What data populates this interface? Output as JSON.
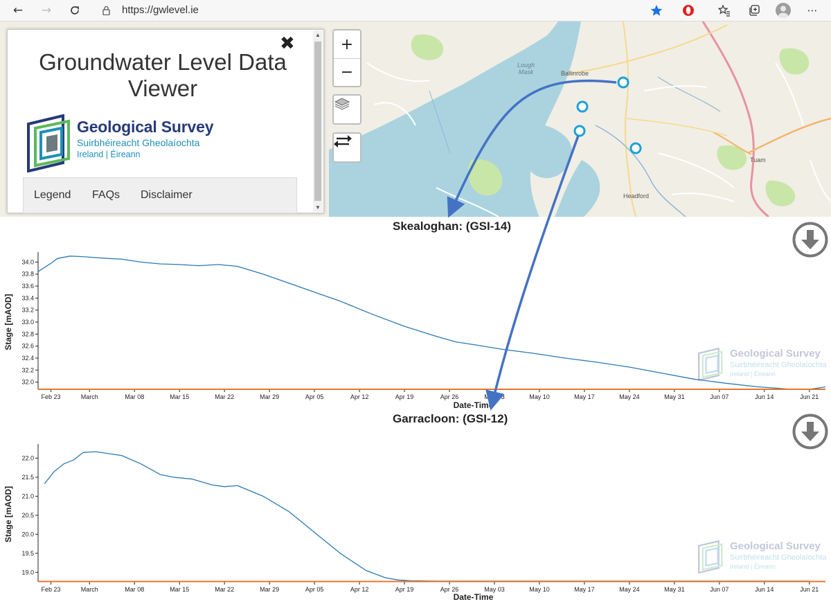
{
  "browser": {
    "url": "https://gwlevel.ie",
    "icons": [
      "back-icon",
      "forward-icon",
      "reload-icon",
      "lock-icon",
      "favorite-star-icon",
      "opera-icon",
      "favorites-list-icon",
      "collections-icon",
      "profile-icon",
      "more-icon"
    ]
  },
  "map": {
    "labels": {
      "lough_mask": "Lough\nMask",
      "ballinrobe": "Ballinrobe",
      "tuam": "Tuam",
      "headford": "Headford"
    },
    "controls": {
      "zoom_in": "+",
      "zoom_out": "−"
    },
    "station_count": 4,
    "accent_color": "#1ba0d8"
  },
  "panel": {
    "title": "Groundwater Level Data Viewer",
    "org_name": "Geological Survey",
    "org_irish": "Suirbhéireacht Gheolaíochta",
    "org_country": "Ireland | Éireann",
    "nav": [
      "Legend",
      "FAQs",
      "Disclaimer"
    ]
  },
  "chart_data": [
    {
      "type": "line",
      "title": "Skealoghan: (GSI-14)",
      "xlabel": "Date-Time",
      "ylabel": "Stage [mAOD]",
      "x_ticks": [
        "Feb 23",
        "March",
        "Mar 08",
        "Mar 15",
        "Mar 22",
        "Mar 29",
        "Apr 05",
        "Apr 12",
        "Apr 19",
        "Apr 26",
        "May 03",
        "May 10",
        "May 17",
        "May 24",
        "May 31",
        "Jun 07",
        "Jun 14",
        "Jun 21"
      ],
      "y_ticks": [
        32.0,
        32.2,
        32.4,
        32.6,
        32.8,
        33.0,
        33.2,
        33.4,
        33.6,
        33.8,
        34.0
      ],
      "ylim": [
        31.88,
        34.12
      ],
      "x_domain_days": [
        -2,
        120.5
      ],
      "series": [
        {
          "color": "#2b78b4",
          "x_days": [
            -2,
            0,
            1,
            3,
            5,
            9,
            11,
            14,
            17,
            20,
            23,
            26,
            29,
            33,
            37,
            41,
            45,
            50,
            55,
            60,
            63,
            66,
            70,
            75,
            80,
            85,
            90,
            95,
            100,
            105,
            110,
            114,
            115,
            116,
            118,
            120,
            120.5
          ],
          "y": [
            33.84,
            33.98,
            34.06,
            34.1,
            34.09,
            34.06,
            34.05,
            34.0,
            33.97,
            33.96,
            33.94,
            33.96,
            33.93,
            33.8,
            33.65,
            33.5,
            33.35,
            33.13,
            32.93,
            32.76,
            32.67,
            32.62,
            32.55,
            32.48,
            32.4,
            32.33,
            32.25,
            32.15,
            32.05,
            31.98,
            31.92,
            31.89,
            31.88,
            31.88,
            31.88,
            31.91,
            31.92
          ]
        },
        {
          "color": "#e8762b",
          "x_days": [
            -2,
            120.5
          ],
          "y": [
            31.88,
            31.88
          ]
        }
      ],
      "watermark": "Geological Survey"
    },
    {
      "type": "line",
      "title": "Garracloon: (GSI-12)",
      "xlabel": "Date-Time",
      "ylabel": "Stage [mAOD]",
      "x_ticks": [
        "Feb 23",
        "March",
        "Mar 08",
        "Mar 15",
        "Mar 22",
        "Mar 29",
        "Apr 05",
        "Apr 12",
        "Apr 19",
        "Apr 26",
        "May 03",
        "May 10",
        "May 17",
        "May 24",
        "May 31",
        "Jun 07",
        "Jun 14",
        "Jun 21"
      ],
      "y_ticks": [
        19.0,
        19.5,
        20.0,
        20.5,
        21.0,
        21.5,
        22.0
      ],
      "ylim": [
        18.75,
        22.3
      ],
      "x_domain_days": [
        -2,
        120.5
      ],
      "series": [
        {
          "color": "#2b78b4",
          "x_days": [
            -1,
            0.5,
            2,
            3.5,
            5,
            7,
            9,
            11,
            14,
            17,
            19,
            22,
            25,
            27,
            29,
            33,
            37,
            41,
            45,
            49,
            52,
            54,
            56,
            60,
            70,
            80,
            90,
            100,
            110,
            118
          ],
          "y": [
            21.33,
            21.65,
            21.85,
            21.95,
            22.15,
            22.17,
            22.12,
            22.07,
            21.85,
            21.57,
            21.5,
            21.45,
            21.3,
            21.25,
            21.28,
            21.0,
            20.6,
            20.05,
            19.5,
            19.05,
            18.86,
            18.8,
            18.78,
            18.77,
            18.77,
            18.77,
            18.77,
            18.77,
            18.77,
            18.77
          ]
        },
        {
          "color": "#e8762b",
          "x_days": [
            -2,
            120.5
          ],
          "y": [
            18.76,
            18.76
          ]
        }
      ],
      "watermark": "Geological Survey"
    }
  ]
}
